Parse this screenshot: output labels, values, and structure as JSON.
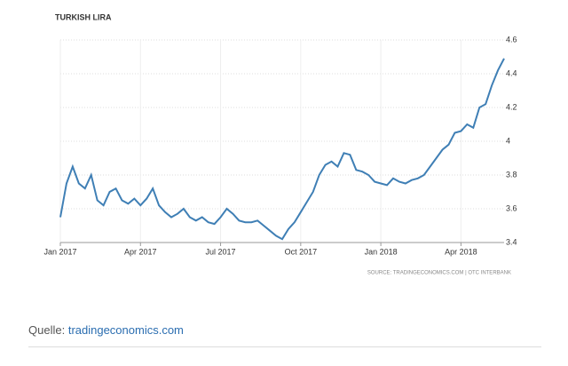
{
  "chart_data": {
    "type": "line",
    "title": "TURKISH LIRA",
    "source": "SOURCE: TRADINGECONOMICS.COM | OTC INTERBANK",
    "x": [
      0,
      1,
      2,
      3,
      4,
      5,
      6,
      7,
      8,
      9,
      10,
      11,
      12,
      13,
      14,
      15,
      16,
      17,
      18,
      19,
      20,
      21,
      22,
      23,
      24,
      25,
      26,
      27,
      28,
      29,
      30,
      31,
      32,
      33,
      34,
      35,
      36,
      37,
      38,
      39,
      40,
      41,
      42,
      43,
      44,
      45,
      46,
      47,
      48,
      49,
      50,
      51,
      52,
      53,
      54,
      55,
      56,
      57,
      58,
      59,
      60,
      61,
      62,
      63,
      64,
      65,
      66,
      67,
      68,
      69,
      70,
      71,
      72
    ],
    "series": [
      {
        "color": "#3f7fb5",
        "values": [
          3.55,
          3.75,
          3.85,
          3.75,
          3.72,
          3.8,
          3.65,
          3.62,
          3.7,
          3.72,
          3.65,
          3.63,
          3.66,
          3.62,
          3.66,
          3.72,
          3.62,
          3.58,
          3.55,
          3.57,
          3.6,
          3.55,
          3.53,
          3.55,
          3.52,
          3.51,
          3.55,
          3.6,
          3.57,
          3.53,
          3.52,
          3.52,
          3.53,
          3.5,
          3.47,
          3.44,
          3.42,
          3.48,
          3.52,
          3.58,
          3.64,
          3.7,
          3.8,
          3.86,
          3.88,
          3.85,
          3.93,
          3.92,
          3.83,
          3.82,
          3.8,
          3.76,
          3.75,
          3.74,
          3.78,
          3.76,
          3.75,
          3.77,
          3.78,
          3.8,
          3.85,
          3.9,
          3.95,
          3.98,
          4.05,
          4.06,
          4.1,
          4.08,
          4.2,
          4.22,
          4.33,
          4.42,
          4.49
        ]
      }
    ],
    "xlim": [
      0,
      72
    ],
    "xticks": [
      {
        "value": 0,
        "label": "Jan 2017"
      },
      {
        "value": 13,
        "label": "Apr 2017"
      },
      {
        "value": 26,
        "label": "Jul 2017"
      },
      {
        "value": 39,
        "label": "Oct 2017"
      },
      {
        "value": 52,
        "label": "Jan 2018"
      },
      {
        "value": 65,
        "label": "Apr 2018"
      }
    ],
    "ylim": [
      3.4,
      4.6
    ],
    "yticks": [
      3.4,
      3.6,
      3.8,
      4,
      4.2,
      4.4,
      4.6
    ],
    "grid": true
  },
  "footer": {
    "label": "Quelle:",
    "link": "tradingeconomics.com"
  }
}
